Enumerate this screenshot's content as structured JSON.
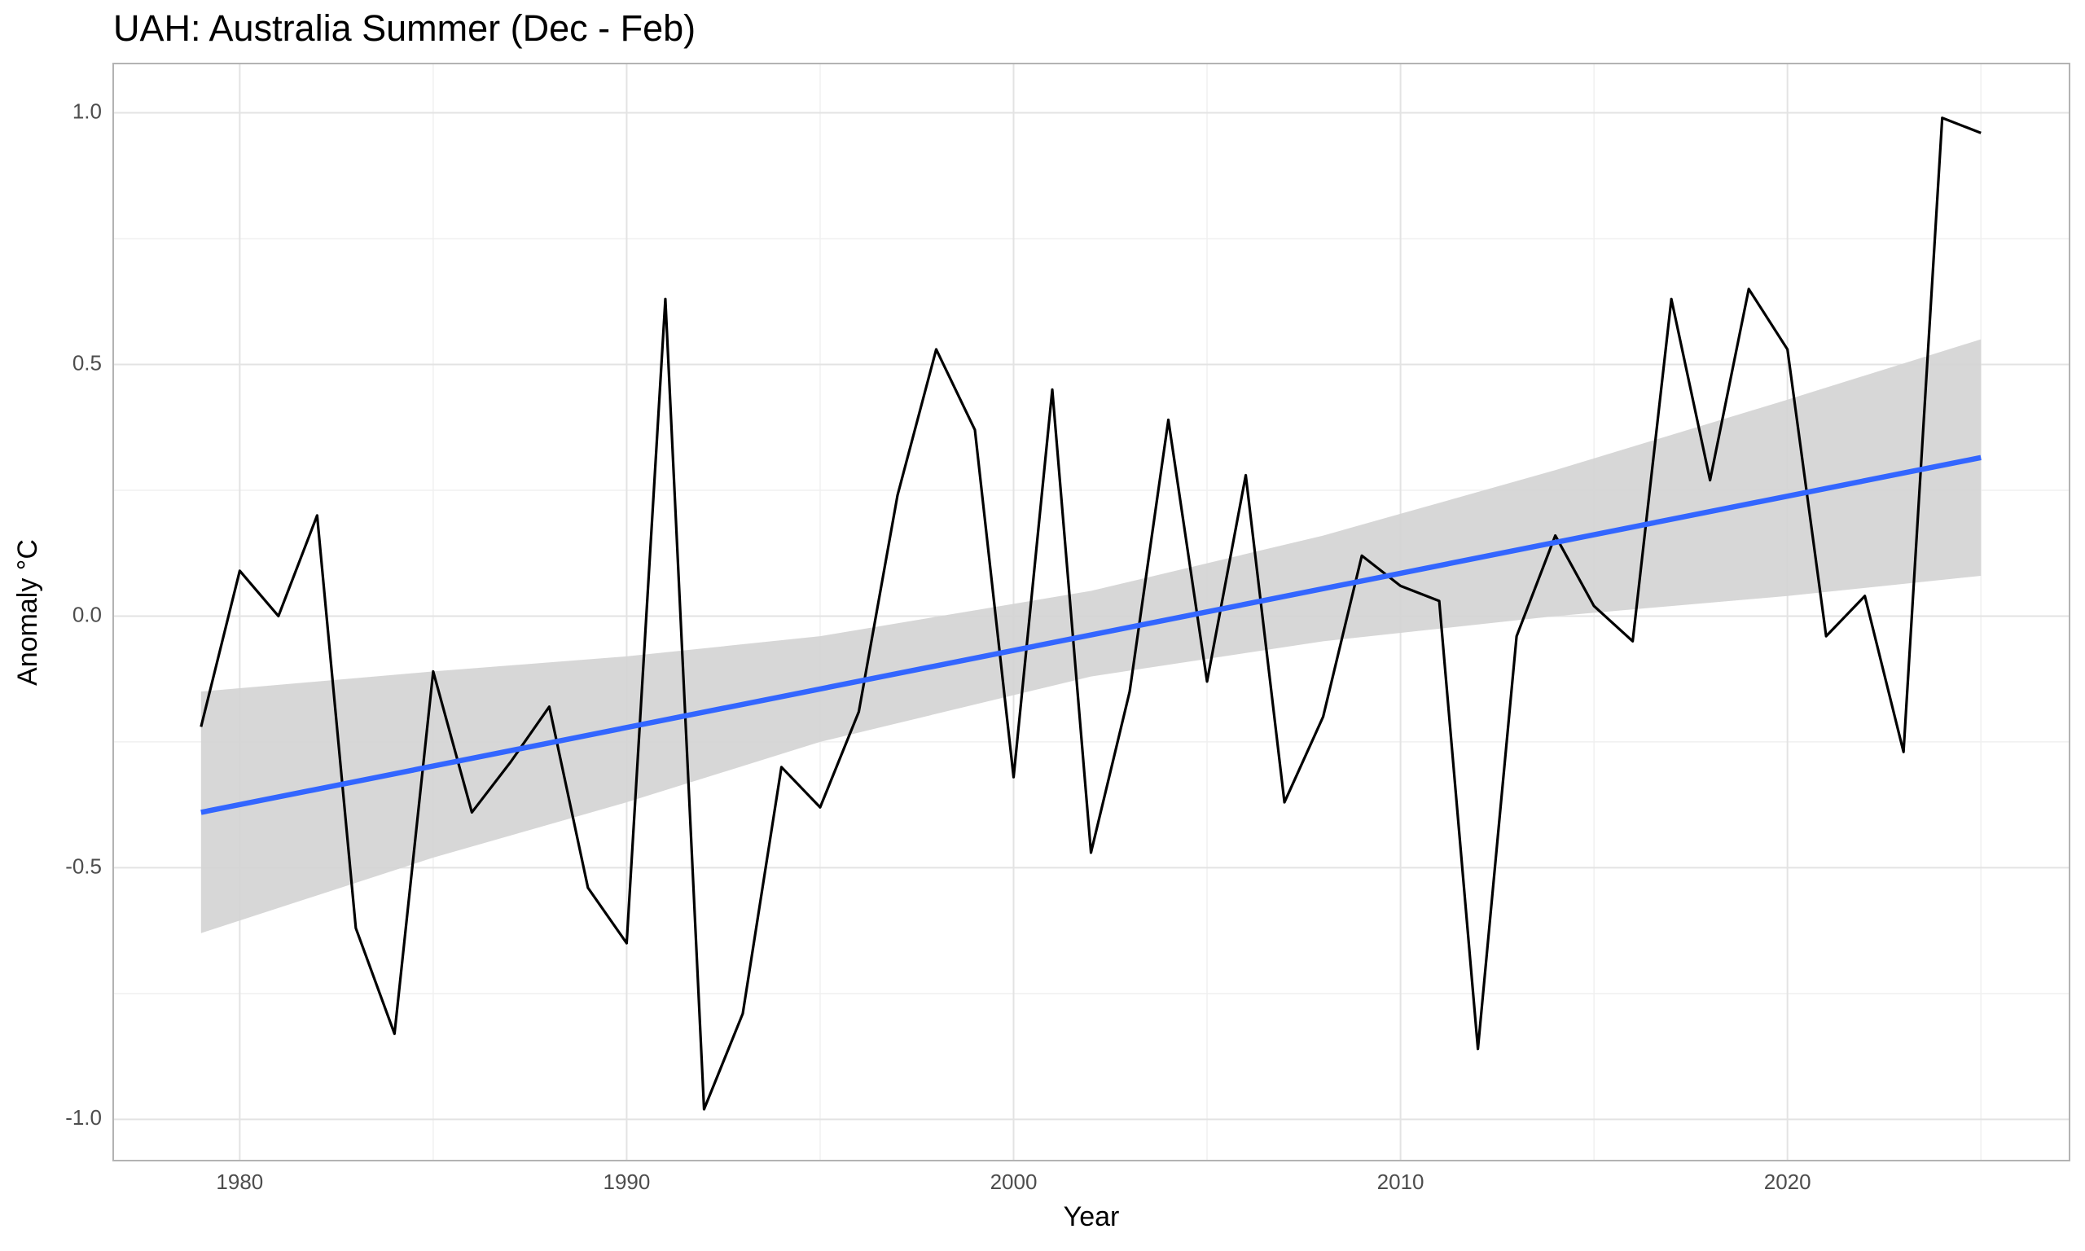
{
  "chart_data": {
    "type": "line",
    "title": "UAH: Australia Summer (Dec - Feb)",
    "x_label": "Year",
    "y_label": "Anomaly °C",
    "x": [
      1979,
      1980,
      1981,
      1982,
      1983,
      1984,
      1985,
      1986,
      1987,
      1988,
      1989,
      1990,
      1991,
      1992,
      1993,
      1994,
      1995,
      1996,
      1997,
      1998,
      1999,
      2000,
      2001,
      2002,
      2003,
      2004,
      2005,
      2006,
      2007,
      2008,
      2009,
      2010,
      2011,
      2012,
      2013,
      2014,
      2015,
      2016,
      2017,
      2018,
      2019,
      2020,
      2021,
      2022,
      2023,
      2024,
      2025
    ],
    "series": [
      {
        "color": "#000000",
        "values": [
          -0.22,
          0.09,
          0.0,
          0.2,
          -0.62,
          -0.83,
          -0.11,
          -0.39,
          -0.29,
          -0.18,
          -0.54,
          -0.65,
          0.63,
          -0.98,
          -0.79,
          -0.3,
          -0.38,
          -0.19,
          0.24,
          0.53,
          0.37,
          -0.32,
          0.45,
          -0.47,
          -0.15,
          0.39,
          -0.13,
          0.28,
          -0.37,
          -0.2,
          0.12,
          0.06,
          0.03,
          -0.86,
          -0.04,
          0.16,
          0.02,
          -0.05,
          0.63,
          0.27,
          0.65,
          0.53,
          -0.04,
          0.04,
          -0.27,
          0.99,
          0.96
        ]
      }
    ],
    "trend": {
      "color": "#3366ff",
      "x": [
        1979,
        2025
      ],
      "values": [
        -0.39,
        0.315
      ]
    },
    "band": {
      "color": "#d3d3d3",
      "x": [
        1979,
        1985,
        1990,
        1995,
        2002,
        2008,
        2014,
        2020,
        2025
      ],
      "lower": [
        -0.63,
        -0.48,
        -0.37,
        -0.25,
        -0.12,
        -0.05,
        0.0,
        0.04,
        0.08
      ],
      "upper": [
        -0.15,
        -0.11,
        -0.08,
        -0.04,
        0.05,
        0.16,
        0.29,
        0.43,
        0.55
      ]
    },
    "xlim": [
      1976.73,
      2027.29
    ],
    "ylim": [
      -1.082,
      1.098
    ],
    "xticks": [
      1980,
      1990,
      2000,
      2010,
      2020
    ],
    "yticks": [
      {
        "value": -1,
        "label": "-1.0"
      },
      {
        "value": -0.5,
        "label": "-0.5"
      },
      {
        "value": 0,
        "label": "0.0"
      },
      {
        "value": 0.5,
        "label": "0.5"
      },
      {
        "value": 1,
        "label": "1.0"
      }
    ],
    "grid": true
  }
}
